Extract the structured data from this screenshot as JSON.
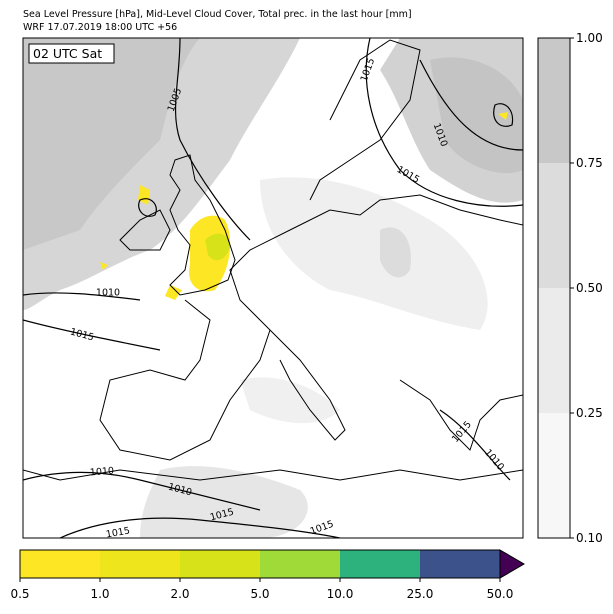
{
  "header": {
    "title_line1": "Sea Level Pressure [hPa], Mid-Level Cloud Cover, Total prec. in the last hour [mm]",
    "title_line2": "WRF 17.07.2019 18:00 UTC +56"
  },
  "map": {
    "time_label": "02 UTC Sat",
    "contour_labels": [
      "1005",
      "1015",
      "1010",
      "1015",
      "1010",
      "1015",
      "1010",
      "1010",
      "1015",
      "1015",
      "1015",
      "1015",
      "1010"
    ]
  },
  "cloud_colorbar": {
    "ticks": [
      "0.10",
      "0.25",
      "0.50",
      "0.75",
      "1.00"
    ],
    "colors": [
      "#f7f7f7",
      "#ebebeb",
      "#dcdcdc",
      "#c8c8c8"
    ]
  },
  "precip_colorbar": {
    "ticks": [
      "0.5",
      "1.0",
      "2.0",
      "5.0",
      "10.0",
      "25.0",
      "50.0"
    ],
    "colors": [
      "#fde725",
      "#efe51c",
      "#d8e219",
      "#a0da39",
      "#2db27d",
      "#3b528b"
    ],
    "extend_color": "#440154"
  }
}
